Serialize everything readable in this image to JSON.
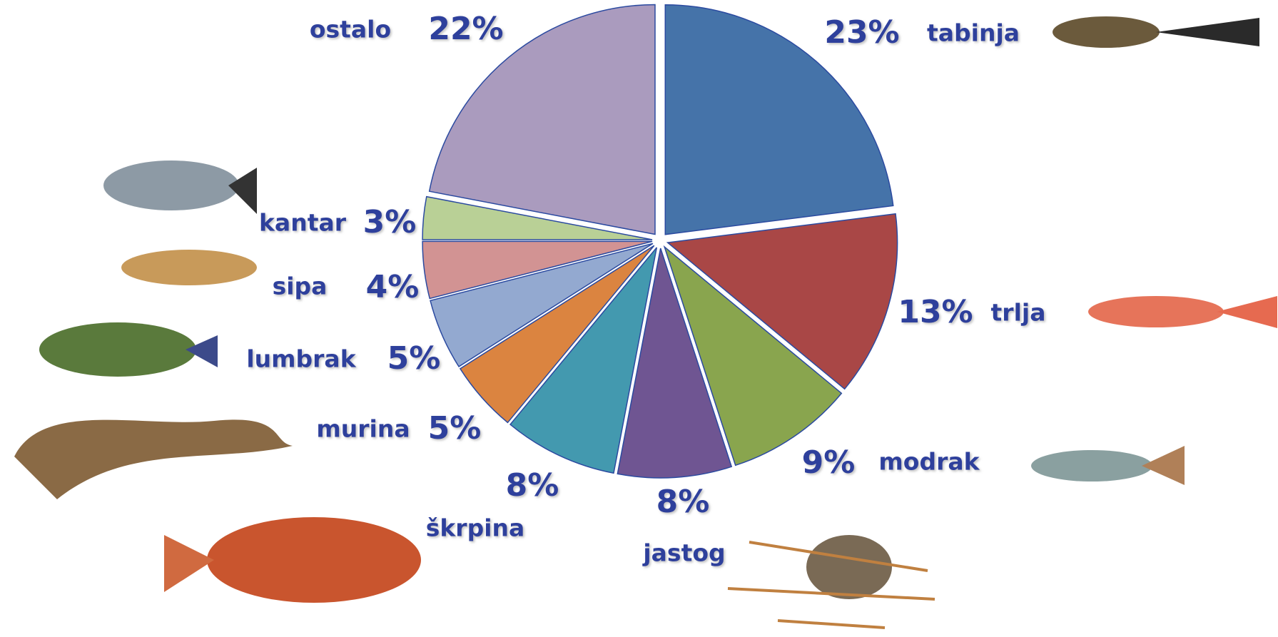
{
  "chart_data": {
    "type": "pie",
    "categories": [
      "tabinja",
      "trlja",
      "modrak",
      "jastog",
      "škrpina",
      "murina",
      "lumbrak",
      "sipa",
      "kantar",
      "ostalo"
    ],
    "values": [
      23,
      13,
      9,
      8,
      8,
      5,
      5,
      4,
      3,
      22
    ],
    "value_labels": [
      "23%",
      "13%",
      "9%",
      "8%",
      "8%",
      "5%",
      "5%",
      "4%",
      "3%",
      "22%"
    ],
    "colors": [
      "#4573a9",
      "#a94746",
      "#89a54e",
      "#6f5592",
      "#4399af",
      "#db8440",
      "#93a9d0",
      "#d29393",
      "#b9d096",
      "#aa9bbe"
    ]
  }
}
